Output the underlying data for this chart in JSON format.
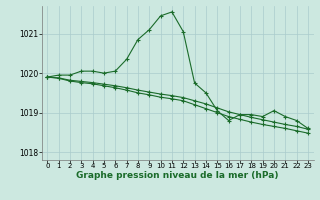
{
  "background_color": "#cce8e0",
  "grid_color": "#aacccc",
  "line_color": "#1a6b2a",
  "marker_color": "#1a6b2a",
  "xlabel": "Graphe pression niveau de la mer (hPa)",
  "xlabel_fontsize": 6.5,
  "ylabel_fontsize": 6.5,
  "xlim": [
    -0.5,
    23.5
  ],
  "ylim": [
    1017.8,
    1021.7
  ],
  "yticks": [
    1018,
    1019,
    1020,
    1021
  ],
  "xticks": [
    0,
    1,
    2,
    3,
    4,
    5,
    6,
    7,
    8,
    9,
    10,
    11,
    12,
    13,
    14,
    15,
    16,
    17,
    18,
    19,
    20,
    21,
    22,
    23
  ],
  "series": [
    {
      "x": [
        0,
        1,
        2,
        3,
        4,
        5,
        6,
        7,
        8,
        9,
        10,
        11,
        12,
        13,
        14,
        15,
        16,
        17,
        18,
        19,
        20,
        21,
        22,
        23
      ],
      "y": [
        1019.9,
        1019.95,
        1019.95,
        1020.05,
        1020.05,
        1020.0,
        1020.05,
        1020.35,
        1020.85,
        1021.1,
        1021.45,
        1021.55,
        1021.05,
        1019.75,
        1019.5,
        1019.05,
        1018.8,
        1018.95,
        1018.95,
        1018.9,
        1019.05,
        1018.9,
        1018.8,
        1018.6
      ]
    },
    {
      "x": [
        0,
        1,
        2,
        3,
        4,
        5,
        6,
        7,
        8,
        9,
        10,
        11,
        12,
        13,
        14,
        15,
        16,
        17,
        18,
        19,
        20,
        21,
        22,
        23
      ],
      "y": [
        1019.9,
        1019.88,
        1019.82,
        1019.79,
        1019.76,
        1019.72,
        1019.68,
        1019.63,
        1019.57,
        1019.52,
        1019.47,
        1019.43,
        1019.38,
        1019.3,
        1019.22,
        1019.12,
        1019.02,
        1018.95,
        1018.88,
        1018.82,
        1018.76,
        1018.7,
        1018.65,
        1018.58
      ]
    },
    {
      "x": [
        0,
        1,
        2,
        3,
        4,
        5,
        6,
        7,
        8,
        9,
        10,
        11,
        12,
        13,
        14,
        15,
        16,
        17,
        18,
        19,
        20,
        21,
        22,
        23
      ],
      "y": [
        1019.9,
        1019.87,
        1019.8,
        1019.76,
        1019.73,
        1019.68,
        1019.63,
        1019.57,
        1019.5,
        1019.45,
        1019.39,
        1019.35,
        1019.3,
        1019.2,
        1019.1,
        1019.0,
        1018.9,
        1018.83,
        1018.76,
        1018.7,
        1018.65,
        1018.6,
        1018.54,
        1018.48
      ]
    }
  ]
}
